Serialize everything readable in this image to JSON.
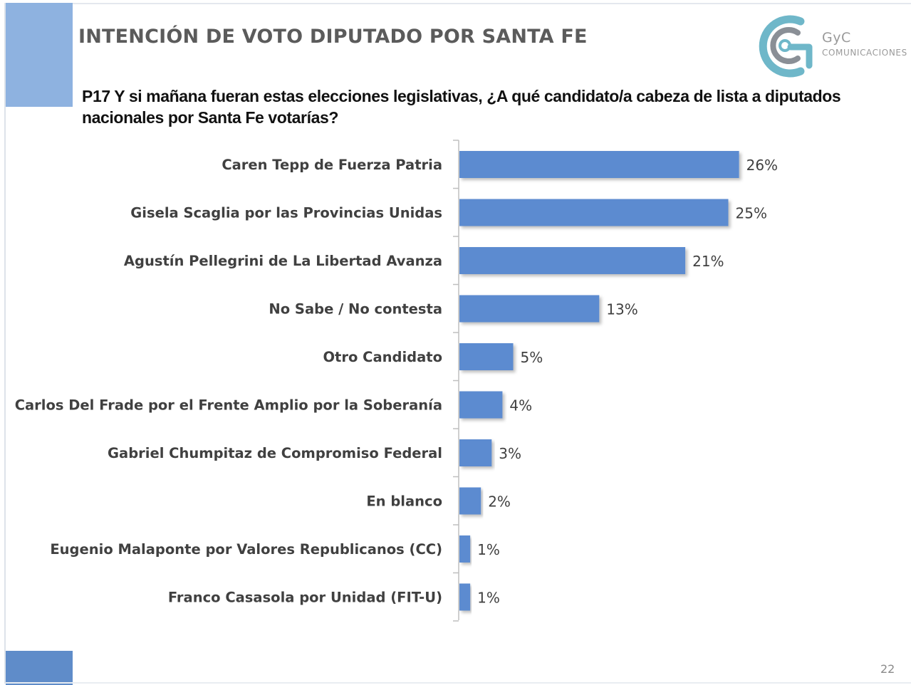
{
  "slide": {
    "title": "INTENCIÓN DE VOTO DIPUTADO POR SANTA FE",
    "question": "P17 Y si mañana fueran estas elecciones legislativas, ¿A qué candidato/a cabeza de lista a diputados nacionales por Santa Fe votarías?",
    "page_number": "22"
  },
  "logo": {
    "name_line1": "GyC",
    "name_line2": "COMUNICACIONES",
    "icon": "gyc-logo-icon"
  },
  "colors": {
    "bar": "#5b8bd0",
    "title": "#5b5b5b",
    "accent_top": "#8eb2e0",
    "accent_bottom": "#5f8cc9",
    "logo_teal": "#6fb7c9",
    "logo_grey": "#9a9a9a"
  },
  "chart_data": {
    "type": "bar",
    "orientation": "horizontal",
    "categories": [
      "Caren Tepp de Fuerza Patria",
      "Gisela Scaglia por las Provincias Unidas",
      "Agustín Pellegrini de La Libertad Avanza",
      "No Sabe / No contesta",
      "Otro Candidato",
      "Carlos Del Frade por el Frente Amplio por la Soberanía",
      "Gabriel Chumpitaz de Compromiso Federal",
      "En blanco",
      "Eugenio Malaponte por Valores Republicanos (CC)",
      "Franco Casasola por Unidad (FIT-U)"
    ],
    "values": [
      26,
      25,
      21,
      13,
      5,
      4,
      3,
      2,
      1,
      1
    ],
    "value_labels": [
      "26%",
      "25%",
      "21%",
      "13%",
      "5%",
      "4%",
      "3%",
      "2%",
      "1%",
      "1%"
    ],
    "unit": "%",
    "grid": false,
    "legend": "none"
  }
}
